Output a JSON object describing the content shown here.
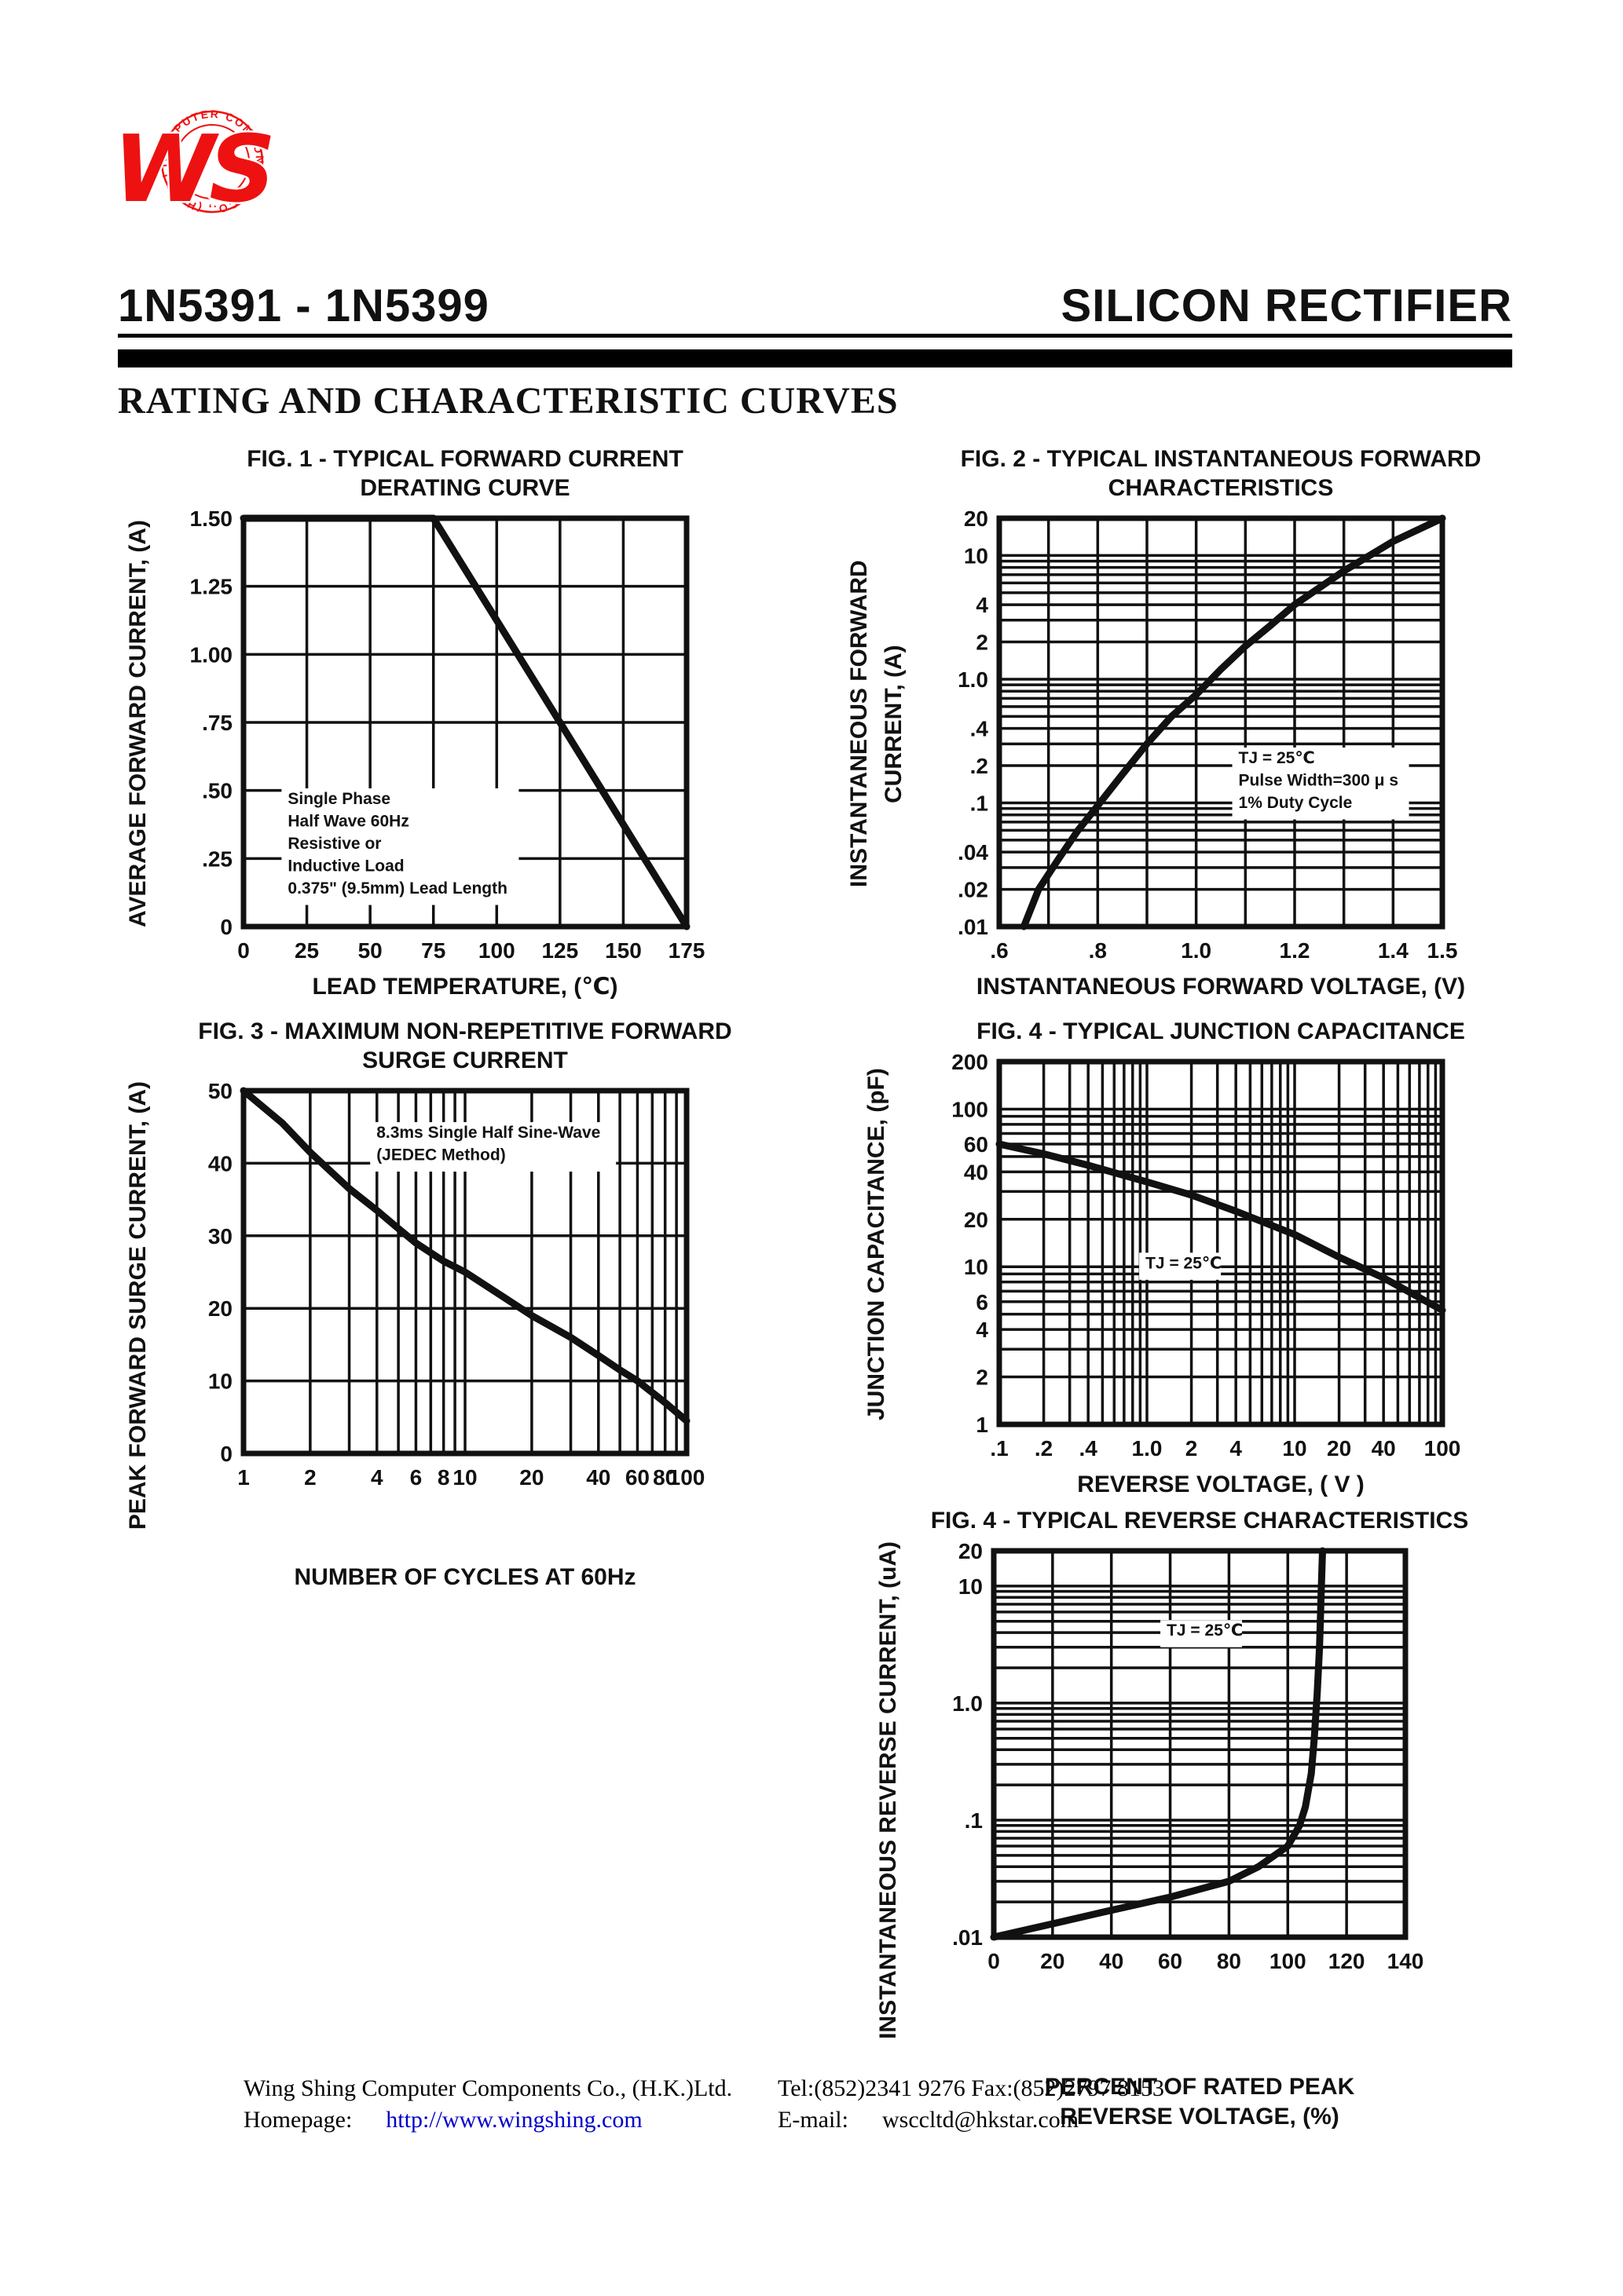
{
  "colors": {
    "ink": "#111111",
    "logo_red": "#ee1111",
    "link_blue": "#0000cc",
    "paper": "#ffffff"
  },
  "logo": {
    "monogram": "WS",
    "ring_text": "COMPUTER  COMPONENTS  CO., (H.K.) LTD."
  },
  "header": {
    "part_number": "1N5391 - 1N5399",
    "product": "SILICON RECTIFIER",
    "section_title": "RATING AND CHARACTERISTIC CURVES"
  },
  "footer": {
    "company": "Wing Shing Computer Components Co., (H.K.)Ltd.",
    "homepage_label": "Homepage:",
    "homepage_url": "http://www.wingshing.com",
    "tel_fax": "Tel:(852)2341 9276   Fax:(852)2797 8153",
    "email_label": "E-mail:",
    "email_value": "wsccltd@hkstar.com"
  },
  "chart_data": [
    {
      "name": "fig1-forward-current-derating",
      "type": "line",
      "title_text": "FIG. 1 - TYPICAL FORWARD CURRENT\nDERATING CURVE",
      "xlabel_text": "LEAD TEMPERATURE, (℃)",
      "ylabel_text": "AVERAGE FORWARD  CURRENT, (A)",
      "xscale": "linear",
      "xmin": 0,
      "xmax": 175,
      "xgrid_step": 25,
      "yscale": "linear",
      "ymin": 0,
      "ymax": 1.5,
      "ygrid_step": 0.25,
      "xticks": [
        [
          0,
          "0"
        ],
        [
          25,
          "25"
        ],
        [
          50,
          "50"
        ],
        [
          75,
          "75"
        ],
        [
          100,
          "100"
        ],
        [
          125,
          "125"
        ],
        [
          150,
          "150"
        ],
        [
          175,
          "175"
        ]
      ],
      "yticks": [
        [
          0,
          "0"
        ],
        [
          0.25,
          ".25"
        ],
        [
          0.5,
          ".50"
        ],
        [
          0.75,
          ".75"
        ],
        [
          1,
          "1.00"
        ],
        [
          1.25,
          "1.25"
        ],
        [
          1.5,
          "1.50"
        ]
      ],
      "series": [
        {
          "name": "derating",
          "points": [
            [
              0,
              1.5
            ],
            [
              75,
              1.5
            ],
            [
              175,
              0
            ]
          ]
        }
      ],
      "note": {
        "lines": [
          "Single Phase",
          "Half Wave 60Hz",
          "Resistive or",
          "Inductive Load",
          "0.375\" (9.5mm) Lead Length"
        ],
        "fx": 0.1,
        "fy": 0.7
      }
    },
    {
      "name": "fig2-instantaneous-forward-characteristics",
      "type": "line",
      "title_text": "FIG. 2 - TYPICAL INSTANTANEOUS FORWARD\nCHARACTERISTICS",
      "xlabel_text": "INSTANTANEOUS FORWARD VOLTAGE, (V)",
      "ylabel_text": "INSTANTANEOUS FORWARD\nCURRENT, (A)",
      "xscale": "linear",
      "xmin": 0.6,
      "xmax": 1.5,
      "xgrid_step": 0.1,
      "yscale": "log",
      "ymin": 0.01,
      "ymax": 20,
      "xticks": [
        [
          0.6,
          ".6"
        ],
        [
          0.8,
          ".8"
        ],
        [
          1.0,
          "1.0"
        ],
        [
          1.2,
          "1.2"
        ],
        [
          1.4,
          "1.4"
        ],
        [
          1.5,
          "1.5"
        ]
      ],
      "yticks": [
        [
          20,
          "20"
        ],
        [
          10,
          "10"
        ],
        [
          4,
          "4"
        ],
        [
          2,
          "2"
        ],
        [
          1,
          "1.0"
        ],
        [
          0.4,
          ".4"
        ],
        [
          0.2,
          ".2"
        ],
        [
          0.1,
          ".1"
        ],
        [
          0.04,
          ".04"
        ],
        [
          0.02,
          ".02"
        ],
        [
          0.01,
          ".01"
        ]
      ],
      "series": [
        {
          "name": "forward",
          "points": [
            [
              0.65,
              0.01
            ],
            [
              0.68,
              0.02
            ],
            [
              0.72,
              0.035
            ],
            [
              0.76,
              0.06
            ],
            [
              0.8,
              0.095
            ],
            [
              0.85,
              0.17
            ],
            [
              0.9,
              0.3
            ],
            [
              0.95,
              0.5
            ],
            [
              1.0,
              0.75
            ],
            [
              1.05,
              1.2
            ],
            [
              1.1,
              1.85
            ],
            [
              1.15,
              2.7
            ],
            [
              1.2,
              4
            ],
            [
              1.3,
              7.5
            ],
            [
              1.4,
              13
            ],
            [
              1.5,
              20
            ]
          ]
        }
      ],
      "note": {
        "lines": [
          "TJ = 25℃",
          "Pulse Width=300 μ s",
          "1% Duty Cycle"
        ],
        "fx": 0.54,
        "fy": 0.6
      }
    },
    {
      "name": "fig3-max-non-repetitive-forward-surge-current",
      "type": "line",
      "title_text": "FIG. 3 - MAXIMUM NON-REPETITIVE FORWARD\nSURGE CURRENT",
      "xlabel_text": "NUMBER OF CYCLES AT 60Hz",
      "ylabel_text": "PEAK FORWARD SURGE CURRENT, (A)",
      "xscale": "log",
      "xmin": 1,
      "xmax": 100,
      "yscale": "linear",
      "ymin": 0,
      "ymax": 50,
      "ygrid_step": 10,
      "xticks": [
        [
          1,
          "1"
        ],
        [
          2,
          "2"
        ],
        [
          4,
          "4"
        ],
        [
          6,
          "6"
        ],
        [
          8,
          "8"
        ],
        [
          10,
          "10"
        ],
        [
          20,
          "20"
        ],
        [
          40,
          "40"
        ],
        [
          60,
          "60"
        ],
        [
          80,
          "80"
        ],
        [
          100,
          "100"
        ]
      ],
      "yticks": [
        [
          0,
          "0"
        ],
        [
          10,
          "10"
        ],
        [
          20,
          "20"
        ],
        [
          30,
          "30"
        ],
        [
          40,
          "40"
        ],
        [
          50,
          "50"
        ]
      ],
      "series": [
        {
          "name": "surge",
          "points": [
            [
              1,
              50
            ],
            [
              1.5,
              45.5
            ],
            [
              2,
              41.5
            ],
            [
              3,
              36.5
            ],
            [
              4,
              33.5
            ],
            [
              5,
              31
            ],
            [
              6,
              29
            ],
            [
              8,
              26.5
            ],
            [
              10,
              25
            ],
            [
              15,
              21.5
            ],
            [
              20,
              19
            ],
            [
              30,
              16
            ],
            [
              40,
              13.5
            ],
            [
              50,
              11.5
            ],
            [
              60,
              10
            ],
            [
              80,
              7
            ],
            [
              100,
              4.5
            ]
          ]
        }
      ],
      "note": {
        "lines": [
          "8.3ms Single Half Sine-Wave",
          "(JEDEC Method)"
        ],
        "fx": 0.3,
        "fy": 0.13
      }
    },
    {
      "name": "fig4-typical-junction-capacitance",
      "type": "line",
      "title_text": "FIG. 4 - TYPICAL JUNCTION CAPACITANCE",
      "xlabel_text": "REVERSE VOLTAGE, ( V )",
      "ylabel_text": "JUNCTION CAPACITANCE, (pF)",
      "xscale": "log",
      "xmin": 0.1,
      "xmax": 100,
      "yscale": "log",
      "ymin": 1,
      "ymax": 200,
      "xticks": [
        [
          0.1,
          ".1"
        ],
        [
          0.2,
          ".2"
        ],
        [
          0.4,
          ".4"
        ],
        [
          1,
          "1.0"
        ],
        [
          2,
          "2"
        ],
        [
          4,
          "4"
        ],
        [
          10,
          "10"
        ],
        [
          20,
          "20"
        ],
        [
          40,
          "40"
        ],
        [
          100,
          "100"
        ]
      ],
      "yticks": [
        [
          200,
          "200"
        ],
        [
          100,
          "100"
        ],
        [
          60,
          "60"
        ],
        [
          40,
          "40"
        ],
        [
          20,
          "20"
        ],
        [
          10,
          "10"
        ],
        [
          6,
          "6"
        ],
        [
          4,
          "4"
        ],
        [
          2,
          "2"
        ],
        [
          1,
          "1"
        ]
      ],
      "series": [
        {
          "name": "capacitance",
          "points": [
            [
              0.1,
              60
            ],
            [
              0.2,
              52
            ],
            [
              0.4,
              44
            ],
            [
              1,
              34.5
            ],
            [
              2,
              28.5
            ],
            [
              4,
              22.5
            ],
            [
              10,
              16
            ],
            [
              20,
              11.5
            ],
            [
              40,
              8.5
            ],
            [
              100,
              5.3
            ]
          ]
        }
      ],
      "note": {
        "lines": [
          "TJ = 25℃"
        ],
        "fx": 0.33,
        "fy": 0.57
      }
    },
    {
      "name": "fig5-typical-reverse-characteristics",
      "type": "line",
      "title_text": "FIG. 4 - TYPICAL REVERSE CHARACTERISTICS",
      "xlabel_text": "PERCENT OF RATED PEAK\nREVERSE VOLTAGE, (%)",
      "ylabel_text": "INSTANTANEOUS REVERSE CURRENT, (uA)",
      "xscale": "linear",
      "xmin": 0,
      "xmax": 140,
      "xgrid_step": 20,
      "yscale": "log",
      "ymin": 0.01,
      "ymax": 20,
      "xticks": [
        [
          0,
          "0"
        ],
        [
          20,
          "20"
        ],
        [
          40,
          "40"
        ],
        [
          60,
          "60"
        ],
        [
          80,
          "80"
        ],
        [
          100,
          "100"
        ],
        [
          120,
          "120"
        ],
        [
          140,
          "140"
        ]
      ],
      "yticks": [
        [
          20,
          "20"
        ],
        [
          10,
          "10"
        ],
        [
          1,
          "1.0"
        ],
        [
          0.1,
          ".1"
        ],
        [
          0.01,
          ".01"
        ]
      ],
      "series": [
        {
          "name": "reverse",
          "points": [
            [
              0,
              0.01
            ],
            [
              20,
              0.013
            ],
            [
              40,
              0.017
            ],
            [
              60,
              0.022
            ],
            [
              80,
              0.03
            ],
            [
              90,
              0.04
            ],
            [
              100,
              0.06
            ],
            [
              104,
              0.09
            ],
            [
              106,
              0.13
            ],
            [
              108,
              0.25
            ],
            [
              109,
              0.5
            ],
            [
              110,
              1.2
            ],
            [
              110.8,
              3
            ],
            [
              111.3,
              8
            ],
            [
              111.8,
              20
            ]
          ]
        }
      ],
      "note": {
        "lines": [
          "TJ = 25℃"
        ],
        "fx": 0.42,
        "fy": 0.22
      }
    }
  ]
}
